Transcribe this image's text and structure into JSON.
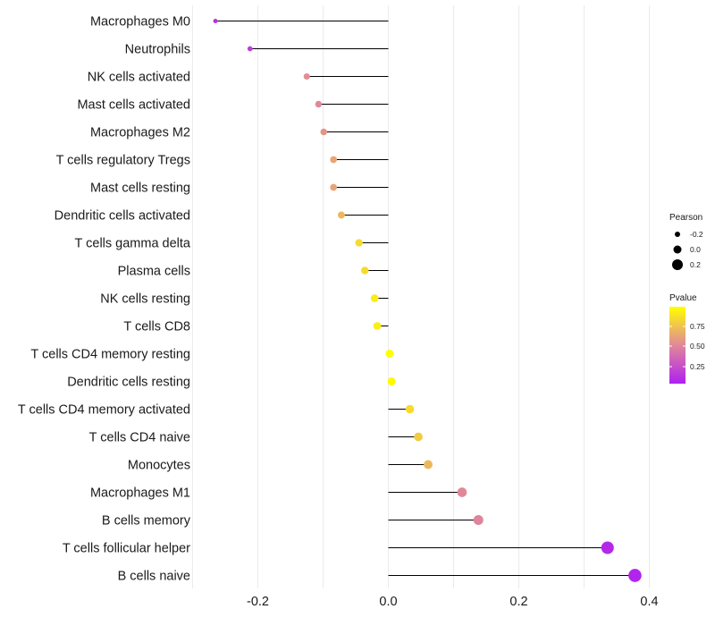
{
  "chart_data": {
    "type": "lollipop",
    "title": "",
    "xlabel": "",
    "ylabel": "",
    "xlim": [
      -0.3,
      0.4
    ],
    "x_ticks": [
      -0.2,
      0.0,
      0.2,
      0.4
    ],
    "x_tick_labels": [
      "-0.2",
      "0.0",
      "0.2",
      "0.4"
    ],
    "grid": "vertical",
    "categories": [
      "Macrophages M0",
      "Neutrophils",
      "NK cells activated",
      "Mast cells activated",
      "Macrophages M2",
      "T cells regulatory  Tregs",
      "Mast cells resting",
      "Dendritic cells activated",
      "T cells gamma delta",
      "Plasma cells",
      "NK cells resting",
      "T cells CD8",
      "T cells CD4 memory resting",
      "Dendritic cells resting",
      "T cells CD4 memory activated",
      "T cells CD4 naive",
      "Monocytes",
      "Macrophages M1",
      "B cells memory",
      "T cells follicular helper",
      "B cells naive"
    ],
    "pearson": [
      -0.265,
      -0.212,
      -0.125,
      -0.107,
      -0.099,
      -0.084,
      -0.084,
      -0.072,
      -0.045,
      -0.036,
      -0.021,
      -0.017,
      0.002,
      0.005,
      0.033,
      0.046,
      0.061,
      0.113,
      0.138,
      0.336,
      0.378
    ],
    "pvalue": [
      0.08,
      0.15,
      0.52,
      0.5,
      0.55,
      0.62,
      0.62,
      0.7,
      0.85,
      0.85,
      0.92,
      0.93,
      0.99,
      0.98,
      0.85,
      0.78,
      0.7,
      0.5,
      0.48,
      0.04,
      0.02
    ],
    "legends": {
      "size": {
        "title": "Pearson",
        "labels": [
          "-0.2",
          "0.0",
          "0.2"
        ]
      },
      "color": {
        "title": "Pvalue",
        "labels": [
          "0.75",
          "0.50",
          "0.25"
        ],
        "low_color": "#b020f0",
        "mid_color": "#e0889a",
        "high_color": "#ffff00"
      }
    },
    "colors": {
      "stem": "#000000",
      "grid": "#ebebeb"
    }
  }
}
